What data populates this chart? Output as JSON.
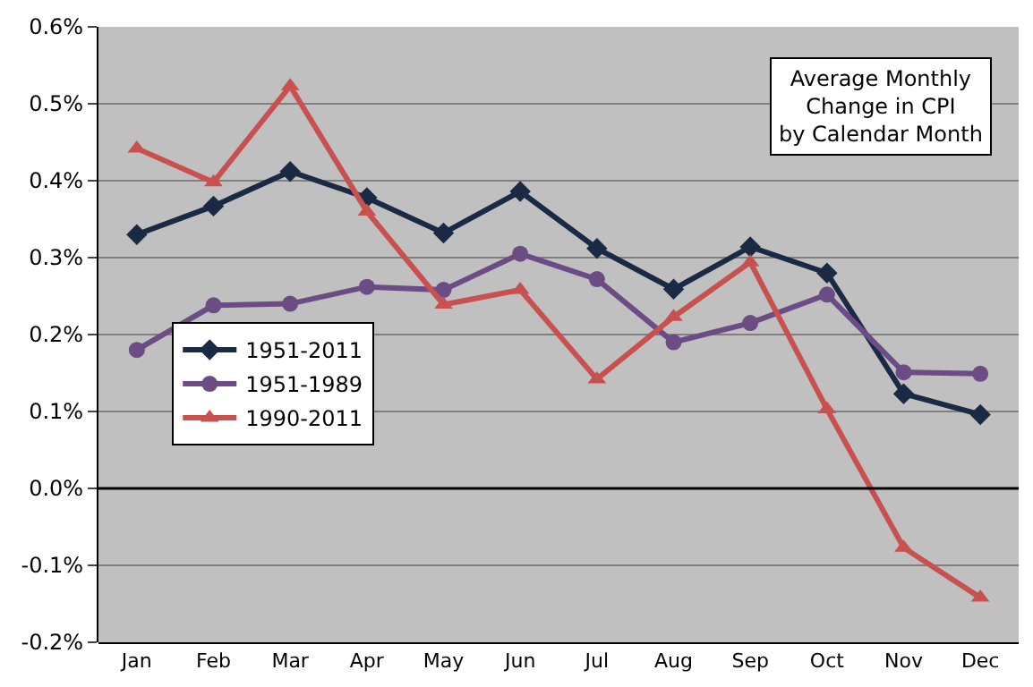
{
  "chart_data": {
    "type": "line",
    "title": "Average Monthly\nChange in CPI\nby Calendar Month",
    "categories": [
      "Jan",
      "Feb",
      "Mar",
      "Apr",
      "May",
      "Jun",
      "Jul",
      "Aug",
      "Sep",
      "Oct",
      "Nov",
      "Dec"
    ],
    "series": [
      {
        "name": "1951-2011",
        "color": "#1b2a44",
        "marker": "diamond",
        "values": [
          0.33,
          0.367,
          0.412,
          0.378,
          0.332,
          0.386,
          0.312,
          0.259,
          0.314,
          0.28,
          0.123,
          0.096
        ]
      },
      {
        "name": "1951-1989",
        "color": "#6b4c84",
        "marker": "circle",
        "values": [
          0.18,
          0.238,
          0.24,
          0.262,
          0.258,
          0.305,
          0.272,
          0.19,
          0.215,
          0.252,
          0.151,
          0.149
        ]
      },
      {
        "name": "1990-2011",
        "color": "#c8514f",
        "marker": "triangle",
        "values": [
          0.442,
          0.398,
          0.523,
          0.36,
          0.239,
          0.258,
          0.142,
          0.223,
          0.294,
          0.103,
          -0.077,
          -0.142
        ]
      }
    ],
    "ylim": [
      -0.2,
      0.6
    ],
    "yticks": [
      {
        "value": -0.2,
        "label": "-0.2%"
      },
      {
        "value": -0.1,
        "label": "-0.1%"
      },
      {
        "value": 0,
        "label": "0.0%"
      },
      {
        "value": 0.1,
        "label": "0.1%"
      },
      {
        "value": 0.2,
        "label": "0.2%"
      },
      {
        "value": 0.3,
        "label": "0.3%"
      },
      {
        "value": 0.4,
        "label": "0.4%"
      },
      {
        "value": 0.5,
        "label": "0.5%"
      },
      {
        "value": 0.6,
        "label": "0.6%"
      }
    ],
    "grid": "y",
    "legend": "left"
  }
}
